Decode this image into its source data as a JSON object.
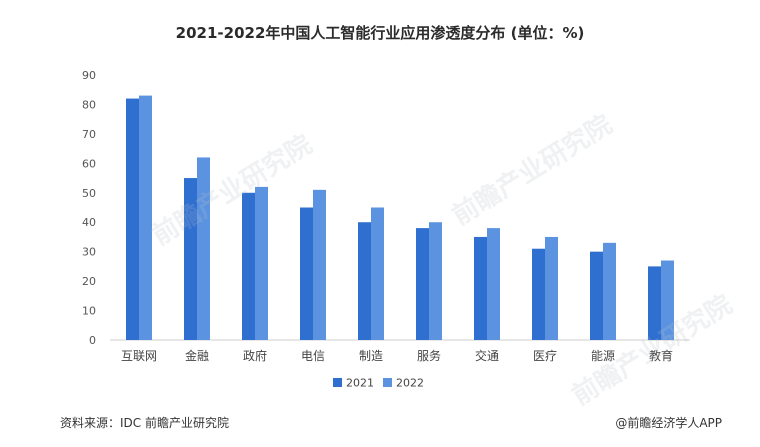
{
  "chart_data": {
    "type": "bar",
    "title": "2021-2022年中国人工智能行业应用渗透度分布 (单位：%)",
    "categories": [
      "互联网",
      "金融",
      "政府",
      "电信",
      "制造",
      "服务",
      "交通",
      "医疗",
      "能源",
      "教育"
    ],
    "series": [
      {
        "name": "2021",
        "color": "#2f6fd0",
        "values": [
          82,
          55,
          50,
          45,
          40,
          38,
          35,
          31,
          30,
          25
        ]
      },
      {
        "name": "2022",
        "color": "#5b93e0",
        "values": [
          83,
          62,
          52,
          51,
          45,
          40,
          38,
          35,
          33,
          27
        ]
      }
    ],
    "yticks": [
      0,
      10,
      20,
      30,
      40,
      50,
      60,
      70,
      80,
      90
    ],
    "ylim": [
      0,
      90
    ],
    "grid": false,
    "legend": "bottom"
  },
  "footer": {
    "source": "资料来源：IDC 前瞻产业研究院",
    "brand": "@前瞻经济学人APP"
  },
  "watermark": "前瞻产业研究院"
}
